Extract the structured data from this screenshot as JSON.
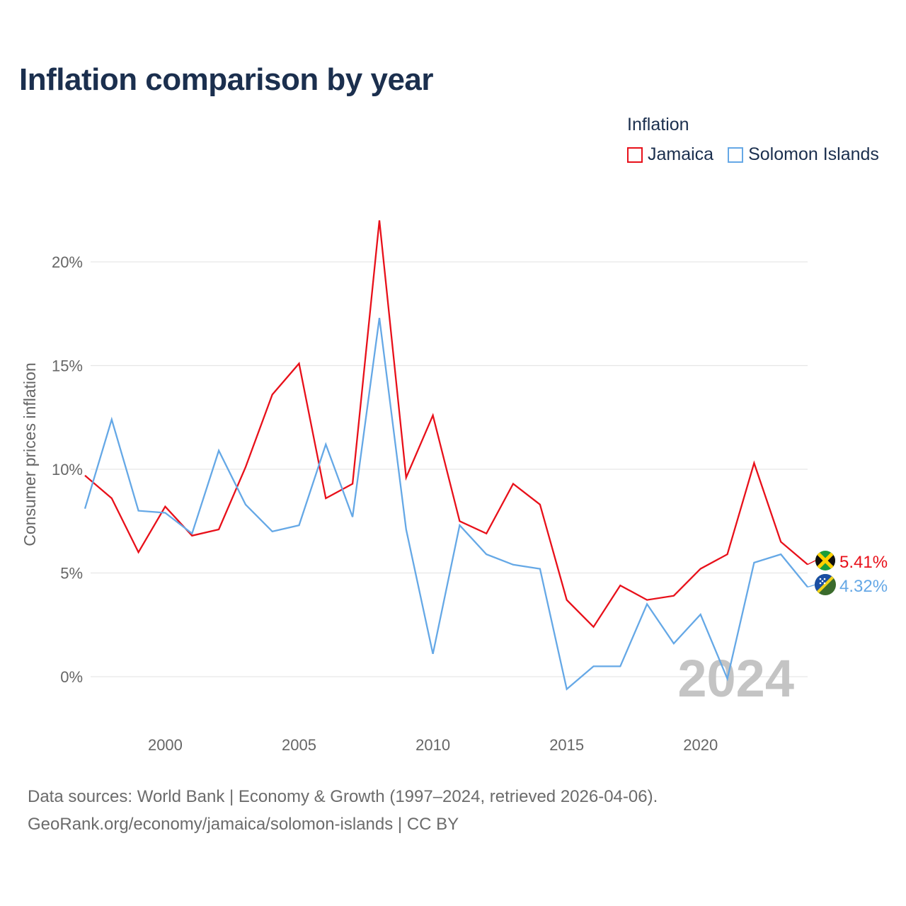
{
  "chart_data": {
    "type": "line",
    "title": "Inflation comparison by year",
    "legend_title": "Inflation",
    "ylabel": "Consumer prices inflation",
    "xlabel": "",
    "year_label": "2024",
    "xlim": [
      1997,
      2024
    ],
    "ylim": [
      -2.5,
      22.5
    ],
    "x_ticks": [
      2000,
      2005,
      2010,
      2015,
      2020
    ],
    "y_ticks": [
      0,
      5,
      10,
      15,
      20
    ],
    "y_tick_labels": [
      "0%",
      "5%",
      "10%",
      "15%",
      "20%"
    ],
    "x": [
      1997,
      1998,
      1999,
      2000,
      2001,
      2002,
      2003,
      2004,
      2005,
      2006,
      2007,
      2008,
      2009,
      2010,
      2011,
      2012,
      2013,
      2014,
      2015,
      2016,
      2017,
      2018,
      2019,
      2020,
      2021,
      2022,
      2023,
      2024
    ],
    "series": [
      {
        "name": "Jamaica",
        "color": "#e8101a",
        "end_label": "5.41%",
        "values": [
          9.7,
          8.6,
          6.0,
          8.2,
          6.8,
          7.1,
          10.1,
          13.6,
          15.1,
          8.6,
          9.3,
          22.0,
          9.6,
          12.6,
          7.5,
          6.9,
          9.3,
          8.3,
          3.7,
          2.4,
          4.4,
          3.7,
          3.9,
          5.2,
          5.9,
          10.3,
          6.5,
          5.41
        ]
      },
      {
        "name": "Solomon Islands",
        "color": "#65a8e6",
        "end_label": "4.32%",
        "values": [
          8.1,
          12.4,
          8.0,
          7.9,
          6.9,
          10.9,
          8.3,
          7.0,
          7.3,
          11.2,
          7.7,
          17.3,
          7.1,
          1.1,
          7.3,
          5.9,
          5.4,
          5.2,
          -0.6,
          0.5,
          0.5,
          3.5,
          1.6,
          3.0,
          -0.1,
          5.5,
          5.9,
          4.32
        ]
      }
    ]
  },
  "footer": {
    "line1": "Data sources: World Bank | Economy & Growth (1997–2024, retrieved 2026-04-06).",
    "line2": "GeoRank.org/economy/jamaica/solomon-islands | CC BY"
  },
  "flags": {
    "jamaica": "jamaica-flag",
    "solomon": "solomon-islands-flag"
  }
}
